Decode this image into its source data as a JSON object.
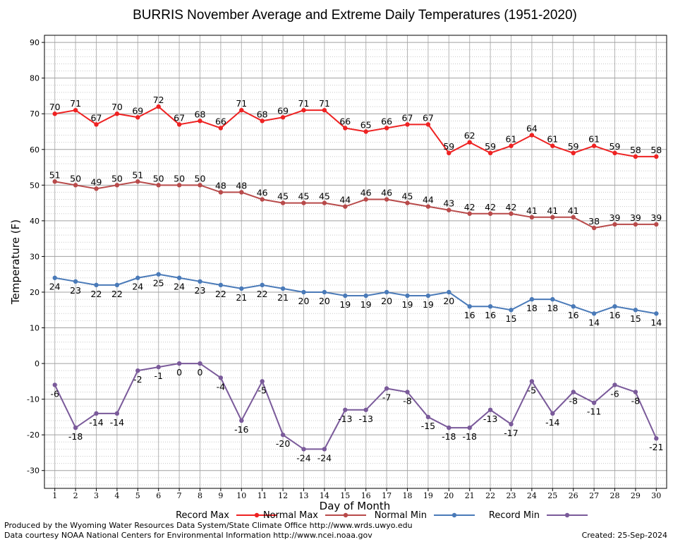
{
  "chart_data": {
    "type": "line",
    "title": "BURRIS November Average and Extreme Daily Temperatures (1951-2020)",
    "xlabel": "Day of Month",
    "ylabel": "Temperature (F)",
    "ylim": [
      -35,
      92
    ],
    "yticks": [
      -30,
      -20,
      -10,
      0,
      10,
      20,
      30,
      40,
      50,
      60,
      70,
      80,
      90
    ],
    "x": [
      1,
      2,
      3,
      4,
      5,
      6,
      7,
      8,
      9,
      10,
      11,
      12,
      13,
      14,
      15,
      16,
      17,
      18,
      19,
      20,
      21,
      22,
      23,
      24,
      25,
      26,
      27,
      28,
      29,
      30
    ],
    "grid": true,
    "legend_position": "bottom",
    "series": [
      {
        "name": "Record Max",
        "color": "#ee2222",
        "label_pos": "above",
        "values": [
          70,
          71,
          67,
          70,
          69,
          72,
          67,
          68,
          66,
          71,
          68,
          69,
          71,
          71,
          66,
          65,
          66,
          67,
          67,
          59,
          62,
          59,
          61,
          64,
          61,
          59,
          61,
          59,
          58,
          58
        ]
      },
      {
        "name": "Normal Max",
        "color": "#b84a4a",
        "label_pos": "above",
        "values": [
          51,
          50,
          49,
          50,
          51,
          50,
          50,
          50,
          48,
          48,
          46,
          45,
          45,
          45,
          44,
          46,
          46,
          45,
          44,
          43,
          42,
          42,
          42,
          41,
          41,
          41,
          38,
          39,
          39,
          39
        ]
      },
      {
        "name": "Normal Min",
        "color": "#4a7ab8",
        "label_pos": "below",
        "values": [
          24,
          23,
          22,
          22,
          24,
          25,
          24,
          23,
          22,
          21,
          22,
          21,
          20,
          20,
          19,
          19,
          20,
          19,
          19,
          20,
          16,
          16,
          15,
          18,
          18,
          16,
          14,
          16,
          15,
          14
        ]
      },
      {
        "name": "Record Min",
        "color": "#7a5a9a",
        "label_pos": "below",
        "values": [
          -6,
          -18,
          -14,
          -14,
          -2,
          -1,
          0,
          0,
          -4,
          -16,
          -5,
          -20,
          -24,
          -24,
          -13,
          -13,
          -7,
          -8,
          -15,
          -18,
          -18,
          -13,
          -17,
          -5,
          -14,
          -8,
          -11,
          -6,
          -8,
          -21
        ]
      }
    ]
  },
  "footer": {
    "produced_by": "Produced by the Wyoming Water Resources Data System/State Climate Office http://www.wrds.uwyo.edu",
    "courtesy": "Data courtesy NOAA National Centers for Environmental Information http://www.ncei.noaa.gov",
    "created": "Created:  25-Sep-2024"
  }
}
